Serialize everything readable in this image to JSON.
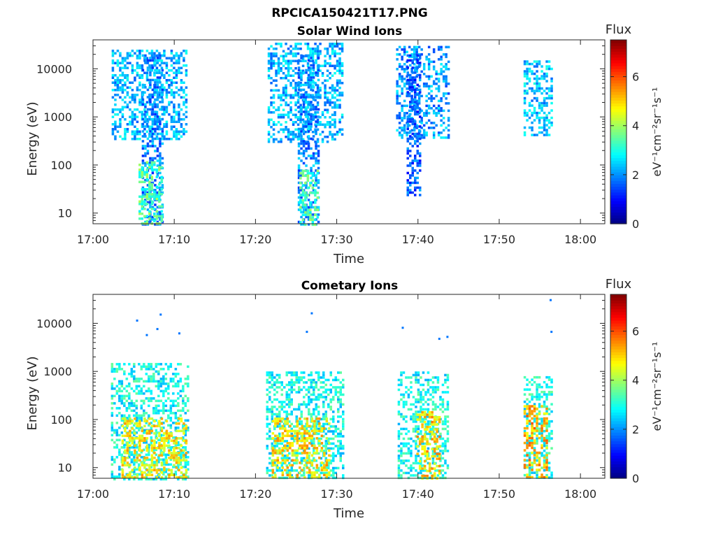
{
  "figure_title": "RPCICA150421T17.PNG",
  "colors": {
    "axis": "#262626",
    "background": "#ffffff"
  },
  "chart_data": [
    {
      "type": "heatmap",
      "title": "Solar Wind Ions",
      "xlabel": "Time",
      "ylabel": "Energy (eV)",
      "yscale": "log",
      "xlim_minutes": [
        0,
        63
      ],
      "ylim": [
        6,
        40000
      ],
      "x_tick_labels": [
        "17:00",
        "17:10",
        "17:20",
        "17:30",
        "17:40",
        "17:50",
        "18:00"
      ],
      "x_tick_minutes": [
        0,
        10,
        20,
        30,
        40,
        50,
        60
      ],
      "y_tick_labels": [
        "10",
        "100",
        "1000",
        "10000"
      ],
      "y_tick_values": [
        10,
        100,
        1000,
        10000
      ],
      "colorbar": {
        "title": "Flux",
        "label": "eV⁻¹cm⁻²sr⁻¹s⁻¹",
        "range": [
          0,
          7.5
        ],
        "tick_labels": [
          "0",
          "2",
          "4",
          "6"
        ],
        "tick_values": [
          0,
          2,
          4,
          6
        ],
        "colormap": "jet"
      },
      "clusters": [
        {
          "t_start": 2.3,
          "t_end": 11.6,
          "e_min": 350,
          "e_max": 25000,
          "flux": 2.3
        },
        {
          "t_start": 6.0,
          "t_end": 8.5,
          "e_min": 6,
          "e_max": 20000,
          "flux": 1.9
        },
        {
          "t_start": 5.6,
          "t_end": 8.6,
          "e_min": 6,
          "e_max": 120,
          "flux": 3.4
        },
        {
          "t_start": 21.5,
          "t_end": 30.8,
          "e_min": 300,
          "e_max": 35000,
          "flux": 2.3
        },
        {
          "t_start": 25.2,
          "t_end": 27.8,
          "e_min": 6,
          "e_max": 20000,
          "flux": 2.0
        },
        {
          "t_start": 25.4,
          "t_end": 27.6,
          "e_min": 6,
          "e_max": 80,
          "flux": 3.3
        },
        {
          "t_start": 37.3,
          "t_end": 43.8,
          "e_min": 350,
          "e_max": 30000,
          "flux": 2.1
        },
        {
          "t_start": 38.6,
          "t_end": 40.3,
          "e_min": 25,
          "e_max": 20000,
          "flux": 1.6
        },
        {
          "t_start": 53.0,
          "t_end": 56.5,
          "e_min": 400,
          "e_max": 15000,
          "flux": 2.4
        }
      ]
    },
    {
      "type": "heatmap",
      "title": "Cometary Ions",
      "xlabel": "Time",
      "ylabel": "Energy (eV)",
      "yscale": "log",
      "xlim_minutes": [
        0,
        63
      ],
      "ylim": [
        6,
        40000
      ],
      "x_tick_labels": [
        "17:00",
        "17:10",
        "17:20",
        "17:30",
        "17:40",
        "17:50",
        "18:00"
      ],
      "x_tick_minutes": [
        0,
        10,
        20,
        30,
        40,
        50,
        60
      ],
      "y_tick_labels": [
        "10",
        "100",
        "1000",
        "10000"
      ],
      "y_tick_values": [
        10,
        100,
        1000,
        10000
      ],
      "colorbar": {
        "title": "Flux",
        "label": "eV⁻¹cm⁻²sr⁻¹s⁻¹",
        "range": [
          0,
          7.5
        ],
        "tick_labels": [
          "0",
          "2",
          "4",
          "6"
        ],
        "tick_values": [
          0,
          2,
          4,
          6
        ],
        "colormap": "jet"
      },
      "clusters": [
        {
          "t_start": 2.2,
          "t_end": 11.7,
          "e_min": 6,
          "e_max": 1500,
          "flux": 2.9
        },
        {
          "t_start": 3.5,
          "t_end": 11.5,
          "e_min": 6,
          "e_max": 110,
          "flux": 4.8
        },
        {
          "t_start": 21.3,
          "t_end": 30.8,
          "e_min": 6,
          "e_max": 1000,
          "flux": 2.9
        },
        {
          "t_start": 22.0,
          "t_end": 29.0,
          "e_min": 6,
          "e_max": 110,
          "flux": 4.9
        },
        {
          "t_start": 37.5,
          "t_end": 43.8,
          "e_min": 6,
          "e_max": 1000,
          "flux": 2.9
        },
        {
          "t_start": 39.8,
          "t_end": 42.8,
          "e_min": 6,
          "e_max": 150,
          "flux": 5.0
        },
        {
          "t_start": 53.0,
          "t_end": 56.5,
          "e_min": 6,
          "e_max": 800,
          "flux": 3.0
        },
        {
          "t_start": 53.0,
          "t_end": 55.8,
          "e_min": 6,
          "e_max": 200,
          "flux": 5.3
        }
      ],
      "sparse_high_energy": [
        {
          "t": 5.3,
          "e": 12000
        },
        {
          "t": 6.5,
          "e": 6000
        },
        {
          "t": 7.8,
          "e": 8000
        },
        {
          "t": 8.2,
          "e": 16000
        },
        {
          "t": 10.5,
          "e": 6500
        },
        {
          "t": 26.2,
          "e": 7000
        },
        {
          "t": 26.8,
          "e": 17000
        },
        {
          "t": 38.0,
          "e": 8500
        },
        {
          "t": 42.5,
          "e": 5000
        },
        {
          "t": 43.5,
          "e": 5500
        },
        {
          "t": 56.2,
          "e": 32000
        },
        {
          "t": 56.3,
          "e": 7000
        }
      ]
    }
  ]
}
